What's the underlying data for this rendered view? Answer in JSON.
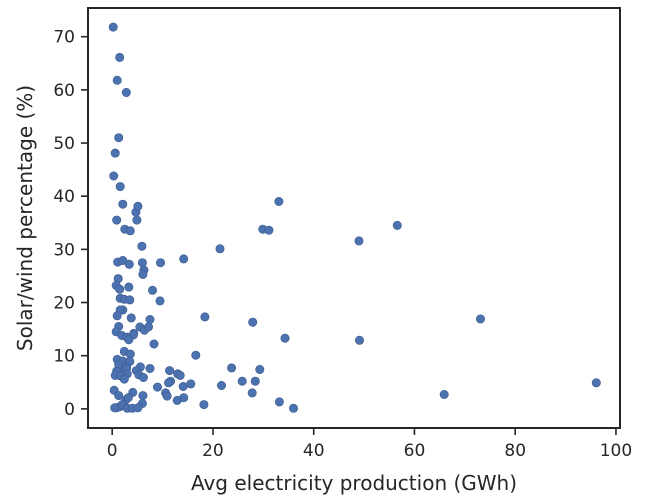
{
  "chart_data": {
    "type": "scatter",
    "title": "",
    "xlabel": "Avg electricity production (GWh)",
    "ylabel": "Solar/wind percentage (%)",
    "xlim": [
      -4.8,
      100.8
    ],
    "ylim": [
      -3.6,
      75.4
    ],
    "xticks": [
      0,
      20,
      40,
      60,
      80,
      100
    ],
    "yticks": [
      0,
      10,
      20,
      30,
      40,
      50,
      60,
      70
    ],
    "grid": false,
    "legend": "none",
    "marker_color": "#4c72b0",
    "marker_edge_color": "#3b5a8f",
    "points": [
      [
        0.2,
        71.8
      ],
      [
        1.5,
        66.1
      ],
      [
        1.0,
        61.8
      ],
      [
        2.8,
        59.5
      ],
      [
        1.3,
        51.0
      ],
      [
        0.6,
        48.1
      ],
      [
        0.3,
        43.8
      ],
      [
        1.6,
        41.8
      ],
      [
        2.1,
        38.5
      ],
      [
        4.7,
        37.0
      ],
      [
        5.1,
        38.1
      ],
      [
        4.9,
        35.5
      ],
      [
        0.9,
        35.5
      ],
      [
        2.5,
        33.8
      ],
      [
        3.6,
        33.5
      ],
      [
        5.9,
        30.6
      ],
      [
        1.1,
        27.6
      ],
      [
        2.1,
        27.9
      ],
      [
        3.4,
        27.2
      ],
      [
        6.0,
        27.5
      ],
      [
        6.3,
        26.1
      ],
      [
        6.1,
        25.3
      ],
      [
        9.6,
        27.5
      ],
      [
        14.2,
        28.2
      ],
      [
        21.4,
        30.1
      ],
      [
        29.9,
        33.8
      ],
      [
        31.1,
        33.6
      ],
      [
        33.1,
        39.0
      ],
      [
        49.0,
        31.6
      ],
      [
        56.6,
        34.5
      ],
      [
        1.2,
        24.5
      ],
      [
        0.8,
        23.2
      ],
      [
        1.5,
        22.5
      ],
      [
        3.3,
        22.9
      ],
      [
        8.0,
        22.3
      ],
      [
        1.6,
        20.8
      ],
      [
        2.4,
        20.6
      ],
      [
        3.5,
        20.5
      ],
      [
        9.5,
        20.3
      ],
      [
        2.1,
        18.6
      ],
      [
        1.6,
        18.6
      ],
      [
        1.0,
        17.5
      ],
      [
        3.8,
        17.1
      ],
      [
        7.5,
        16.8
      ],
      [
        18.4,
        17.3
      ],
      [
        27.9,
        16.3
      ],
      [
        73.1,
        16.9
      ],
      [
        1.3,
        15.5
      ],
      [
        0.8,
        14.5
      ],
      [
        5.5,
        15.4
      ],
      [
        6.4,
        14.8
      ],
      [
        7.2,
        15.4
      ],
      [
        4.3,
        14.2
      ],
      [
        4.2,
        13.9
      ],
      [
        1.9,
        13.8
      ],
      [
        2.9,
        13.5
      ],
      [
        3.3,
        13.0
      ],
      [
        34.3,
        13.3
      ],
      [
        49.1,
        12.9
      ],
      [
        8.3,
        12.2
      ],
      [
        2.4,
        10.8
      ],
      [
        3.6,
        10.3
      ],
      [
        16.6,
        10.1
      ],
      [
        1.0,
        9.3
      ],
      [
        2.1,
        9.0
      ],
      [
        3.5,
        8.9
      ],
      [
        1.3,
        8.3
      ],
      [
        5.6,
        7.9
      ],
      [
        7.5,
        7.6
      ],
      [
        0.9,
        7.1
      ],
      [
        2.4,
        7.1
      ],
      [
        2.9,
        7.7
      ],
      [
        3.0,
        6.6
      ],
      [
        4.8,
        7.2
      ],
      [
        11.4,
        7.2
      ],
      [
        13.0,
        6.6
      ],
      [
        13.5,
        6.3
      ],
      [
        23.7,
        7.7
      ],
      [
        29.3,
        7.4
      ],
      [
        0.6,
        6.3
      ],
      [
        1.7,
        6.2
      ],
      [
        5.3,
        6.4
      ],
      [
        6.2,
        5.9
      ],
      [
        11.6,
        5.2
      ],
      [
        11.2,
        4.9
      ],
      [
        15.6,
        4.7
      ],
      [
        25.8,
        5.2
      ],
      [
        28.4,
        5.2
      ],
      [
        96.1,
        4.9
      ],
      [
        2.4,
        5.6
      ],
      [
        9.0,
        4.1
      ],
      [
        14.1,
        4.2
      ],
      [
        21.7,
        4.4
      ],
      [
        0.4,
        3.5
      ],
      [
        1.3,
        2.5
      ],
      [
        4.1,
        3.1
      ],
      [
        6.1,
        2.5
      ],
      [
        10.6,
        3.0
      ],
      [
        10.9,
        2.4
      ],
      [
        14.2,
        2.1
      ],
      [
        27.8,
        3.0
      ],
      [
        65.9,
        2.7
      ],
      [
        2.7,
        1.7
      ],
      [
        3.2,
        2.1
      ],
      [
        12.9,
        1.6
      ],
      [
        6.0,
        1.0
      ],
      [
        18.2,
        0.8
      ],
      [
        33.2,
        1.3
      ],
      [
        0.8,
        0.2
      ],
      [
        1.5,
        0.4
      ],
      [
        2.0,
        0.8
      ],
      [
        3.0,
        0.1
      ],
      [
        4.0,
        0.1
      ],
      [
        5.1,
        0.2
      ],
      [
        0.5,
        0.2
      ],
      [
        36.0,
        0.1
      ]
    ]
  }
}
